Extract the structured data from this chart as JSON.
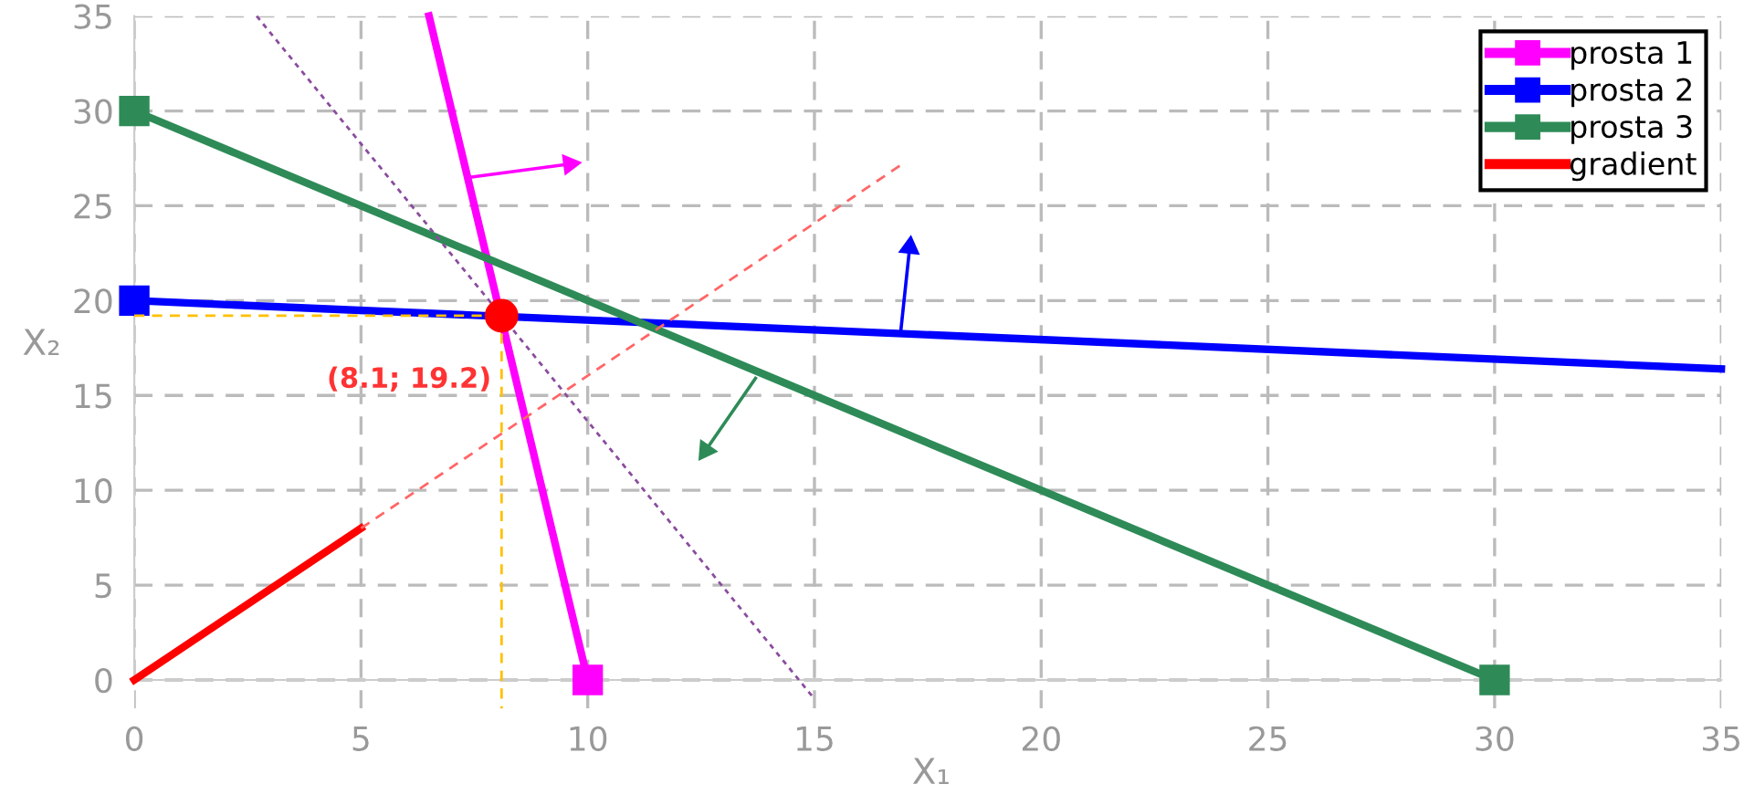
{
  "chart_data": {
    "type": "line",
    "xlabel": "X₁",
    "ylabel": "X₂",
    "xlim": [
      0,
      35
    ],
    "ylim": [
      -1.5,
      35
    ],
    "xticks": [
      0,
      5,
      10,
      15,
      20,
      25,
      30,
      35
    ],
    "yticks": [
      0,
      5,
      10,
      15,
      20,
      25,
      30,
      35
    ],
    "grid": true,
    "legend": "top right",
    "marker": "square",
    "series": [
      {
        "name": "prosta 1",
        "color": "#ff00ff",
        "x": [
          10,
          6.5
        ],
        "values": [
          0,
          35
        ]
      },
      {
        "name": "prosta 2",
        "color": "#0000ff",
        "x": [
          0,
          35
        ],
        "values": [
          20,
          16.4
        ]
      },
      {
        "name": "prosta 3",
        "color": "#2e8b57",
        "x": [
          0,
          30
        ],
        "values": [
          30,
          0
        ]
      },
      {
        "name": "gradient",
        "color": "#ff0000",
        "x": [
          0,
          5
        ],
        "values": [
          0,
          8
        ],
        "marker": "none"
      },
      {
        "type": "line",
        "color": "#ff6666",
        "x": [
          5,
          17
        ],
        "values": [
          8,
          27.3
        ],
        "marker": "none",
        "line_style": "dashed"
      },
      {
        "type": "line",
        "color": "#8b4c9e",
        "x": [
          2.7,
          15
        ],
        "values": [
          35,
          -1
        ],
        "marker": "none",
        "line_style": "dotted"
      },
      {
        "type": "line",
        "color": "#ffc000",
        "x": [
          0,
          8.1
        ],
        "values": [
          19.2,
          19.2
        ],
        "marker": "none",
        "line_style": "dashed"
      },
      {
        "type": "line",
        "color": "#ffc000",
        "x": [
          8.1,
          8.1
        ],
        "values": [
          19.2,
          -1.5
        ],
        "marker": "none",
        "line_style": "dashed"
      },
      {
        "type": "line",
        "marker": "triangle",
        "color": "#ff00ff",
        "x": [
          7.4,
          9.6
        ],
        "values": [
          26.5,
          27.2
        ]
      },
      {
        "type": "line",
        "marker": "triangle",
        "color": "#0000ff",
        "x": [
          16.9,
          17.1
        ],
        "values": [
          18.3,
          22.8
        ]
      },
      {
        "type": "line",
        "marker": "triangle",
        "color": "#2e8b57",
        "x": [
          13.7,
          12.6
        ],
        "values": [
          15.9,
          12.1
        ]
      },
      {
        "type": "scatter",
        "color": "#ff0000",
        "x": [
          8.1
        ],
        "values": [
          19.2
        ],
        "marker": "circle"
      }
    ],
    "annotations": [
      {
        "text": "(8.1; 19.2)",
        "x": 8.1,
        "y": 19.2
      }
    ]
  }
}
